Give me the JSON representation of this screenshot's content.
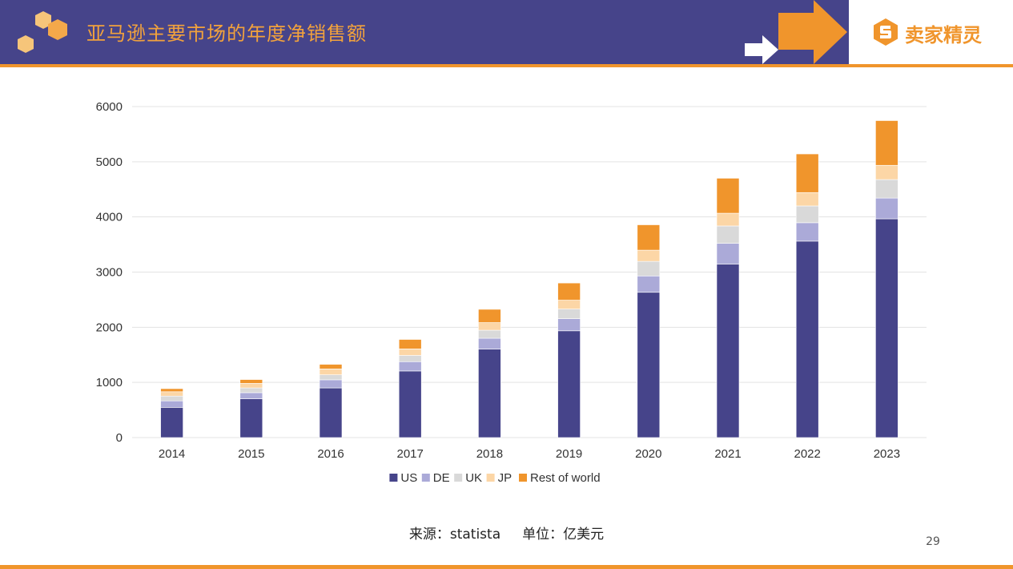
{
  "header": {
    "title": "亚马逊主要市场的年度净销售额",
    "brand": "卖家精灵"
  },
  "colors": {
    "header_bg": "#46448a",
    "accent": "#f0952c",
    "US": "#46448a",
    "DE": "#abaad8",
    "UK": "#d9d9d9",
    "JP": "#fcd6a6",
    "Rest of world": "#f0952c"
  },
  "icons": {
    "logo": "hexagon-cluster-icon",
    "brand": "seller-sprite-s-icon",
    "big_arrow": "arrow-right-icon",
    "small_arrow": "arrow-right-icon"
  },
  "chart_data": {
    "type": "bar",
    "stacked": true,
    "categories": [
      "2014",
      "2015",
      "2016",
      "2017",
      "2018",
      "2019",
      "2020",
      "2021",
      "2022",
      "2023"
    ],
    "series": [
      {
        "name": "US",
        "values": [
          547,
          703,
          900,
          1207,
          1604,
          1935,
          2633,
          3146,
          3561,
          3966
        ]
      },
      {
        "name": "DE",
        "values": [
          118,
          111,
          147,
          169,
          197,
          221,
          297,
          375,
          334,
          376
        ]
      },
      {
        "name": "UK",
        "values": [
          87,
          86,
          91,
          113,
          145,
          174,
          264,
          315,
          304,
          335
        ]
      },
      {
        "name": "JP",
        "values": [
          79,
          82,
          107,
          119,
          138,
          161,
          204,
          231,
          243,
          259
        ]
      },
      {
        "name": "Rest of world",
        "values": [
          56,
          70,
          83,
          171,
          241,
          311,
          459,
          634,
          700,
          810
        ]
      }
    ],
    "ylim": [
      0,
      6000
    ],
    "yticks": [
      0,
      1000,
      2000,
      3000,
      4000,
      5000,
      6000
    ],
    "grid": true,
    "legend": "bottom",
    "title": "",
    "xlabel": "",
    "ylabel": ""
  },
  "footer": {
    "source": "来源：statista     单位：亿美元",
    "page_number": "29"
  }
}
